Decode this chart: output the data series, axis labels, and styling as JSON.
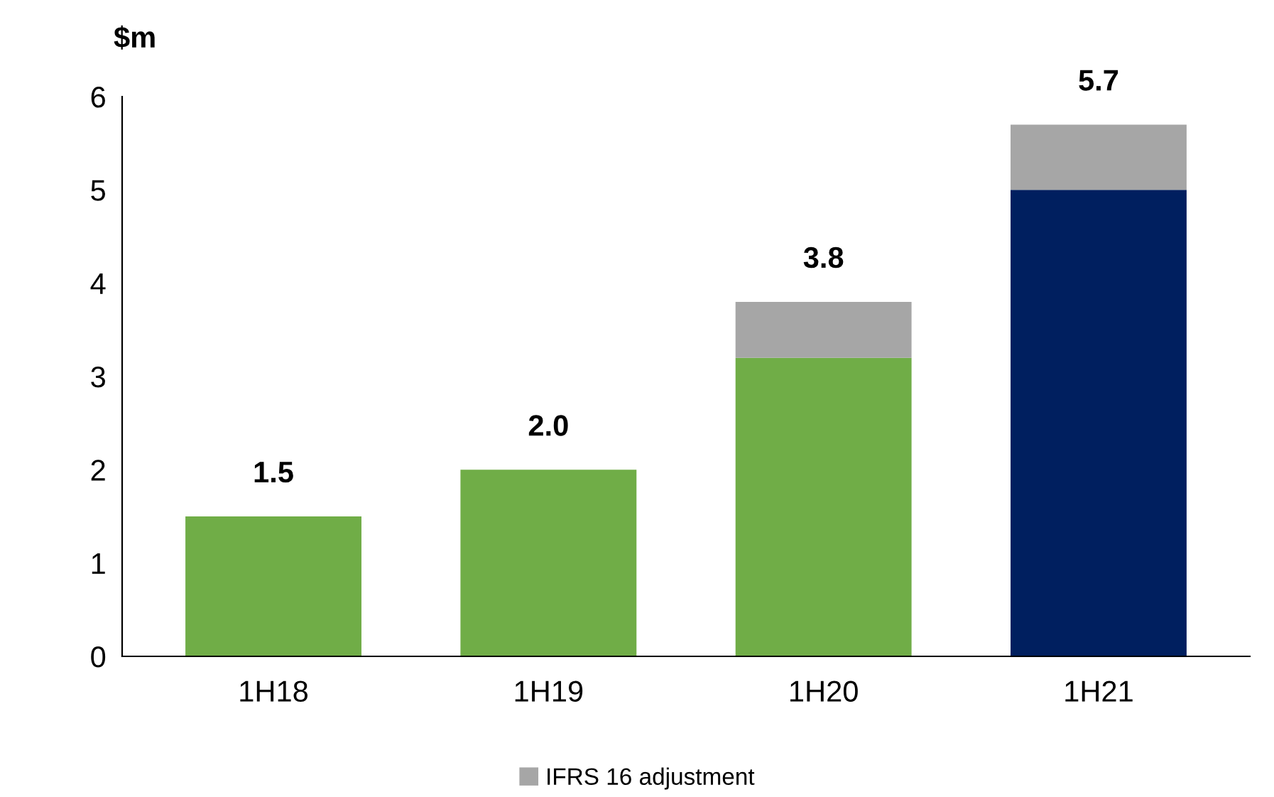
{
  "chart_data": {
    "type": "bar",
    "stacked": true,
    "ylabel": "$m",
    "categories": [
      "1H18",
      "1H19",
      "1H20",
      "1H21"
    ],
    "series": [
      {
        "colors": [
          "#70ad47",
          "#70ad47",
          "#70ad47",
          "#001f5f"
        ],
        "values": [
          1.5,
          2.0,
          3.2,
          5.0
        ]
      },
      {
        "name": "IFRS 16 adjustment",
        "color": "#a6a6a6",
        "values": [
          null,
          null,
          0.6,
          0.7
        ]
      }
    ],
    "totals": [
      "1.5",
      "2.0",
      "3.8",
      "5.7"
    ],
    "ylim": [
      0,
      6
    ],
    "yticks": [
      0,
      1,
      2,
      3,
      4,
      5,
      6
    ],
    "grid": false,
    "legend": "bottom"
  }
}
